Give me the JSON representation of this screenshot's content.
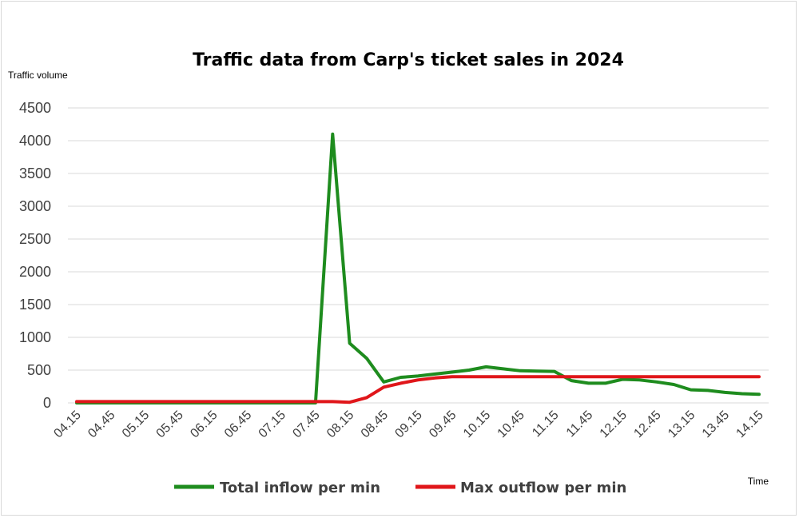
{
  "chart_data": {
    "type": "line",
    "title": "Traffic data from Carp's ticket sales in 2024",
    "ylabel": "Traffic volume",
    "xlabel": "Time",
    "ylim": [
      0,
      4500
    ],
    "yticks": [
      0,
      500,
      1000,
      1500,
      2000,
      2500,
      3000,
      3500,
      4000,
      4500
    ],
    "x_tick_labels": [
      "04.15",
      "04.45",
      "05.15",
      "05.45",
      "06.15",
      "06.45",
      "07.15",
      "07.45",
      "08.15",
      "08.45",
      "09.15",
      "09.45",
      "10.15",
      "10.45",
      "11.15",
      "11.45",
      "12.15",
      "12.45",
      "13.15",
      "13.45",
      "14.15"
    ],
    "x": [
      "04.15",
      "04.30",
      "04.45",
      "05.00",
      "05.15",
      "05.30",
      "05.45",
      "06.00",
      "06.15",
      "06.30",
      "06.45",
      "07.00",
      "07.15",
      "07.30",
      "07.45",
      "08.00",
      "08.15",
      "08.30",
      "08.45",
      "09.00",
      "09.15",
      "09.30",
      "09.45",
      "10.00",
      "10.15",
      "10.30",
      "10.45",
      "11.00",
      "11.15",
      "11.30",
      "11.45",
      "12.00",
      "12.15",
      "12.30",
      "12.45",
      "13.00",
      "13.15",
      "13.30",
      "13.45",
      "14.00",
      "14.15"
    ],
    "grid": true,
    "legend_position": "bottom",
    "series": [
      {
        "name": "Total inflow per min",
        "color": "#1e8c1e",
        "values": [
          0,
          0,
          0,
          0,
          0,
          0,
          0,
          0,
          0,
          0,
          0,
          0,
          0,
          0,
          0,
          4100,
          910,
          680,
          320,
          390,
          410,
          440,
          470,
          500,
          550,
          520,
          490,
          485,
          480,
          340,
          300,
          300,
          360,
          350,
          320,
          280,
          200,
          190,
          160,
          140,
          130
        ]
      },
      {
        "name": "Max outflow per min",
        "color": "#e0161a",
        "values": [
          20,
          20,
          20,
          20,
          20,
          20,
          20,
          20,
          20,
          20,
          20,
          20,
          20,
          20,
          20,
          20,
          10,
          80,
          240,
          300,
          350,
          380,
          400,
          400,
          400,
          400,
          400,
          400,
          400,
          400,
          400,
          400,
          400,
          400,
          400,
          400,
          400,
          400,
          400,
          400,
          400
        ]
      }
    ]
  }
}
